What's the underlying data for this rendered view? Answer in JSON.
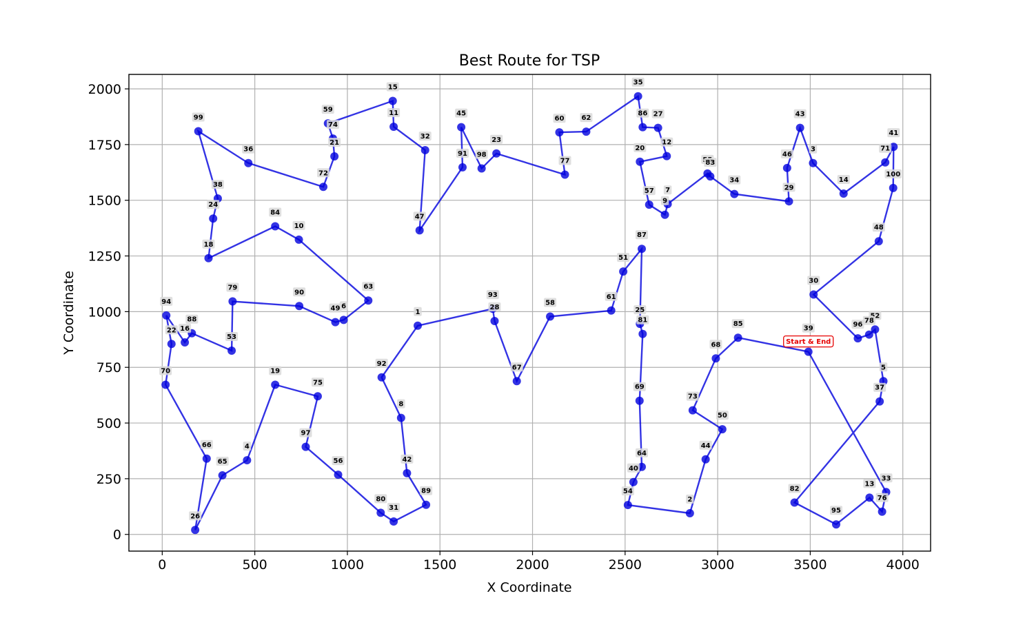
{
  "chart_data": {
    "type": "line",
    "title": "Best Route for TSP",
    "xlabel": "X Coordinate",
    "ylabel": "Y Coordinate",
    "xlim": [
      -180,
      4150
    ],
    "ylim": [
      -75,
      2065
    ],
    "x_ticks": [
      "0",
      "500",
      "1000",
      "1500",
      "2000",
      "2500",
      "3000",
      "3500",
      "4000"
    ],
    "x_tick_values": [
      0,
      500,
      1000,
      1500,
      2000,
      2500,
      3000,
      3500,
      4000
    ],
    "y_ticks": [
      "0",
      "250",
      "500",
      "750",
      "1000",
      "1250",
      "1500",
      "1750",
      "2000"
    ],
    "y_tick_values": [
      0,
      250,
      500,
      750,
      1000,
      1250,
      1500,
      1750,
      2000
    ],
    "grid": true,
    "route_color": "#0000dd",
    "start_marker_color": "#e60000",
    "start_label": "Start & End",
    "cities": [
      {
        "id": "1",
        "x": 1380,
        "y": 937
      },
      {
        "id": "2",
        "x": 2850,
        "y": 95
      },
      {
        "id": "3",
        "x": 3515,
        "y": 1667
      },
      {
        "id": "4",
        "x": 458,
        "y": 333
      },
      {
        "id": "5",
        "x": 3895,
        "y": 688
      },
      {
        "id": "6",
        "x": 980,
        "y": 963
      },
      {
        "id": "7",
        "x": 2730,
        "y": 1483
      },
      {
        "id": "8",
        "x": 1290,
        "y": 523
      },
      {
        "id": "9",
        "x": 2715,
        "y": 1435
      },
      {
        "id": "10",
        "x": 738,
        "y": 1323
      },
      {
        "id": "11",
        "x": 1250,
        "y": 1830
      },
      {
        "id": "12",
        "x": 2725,
        "y": 1698
      },
      {
        "id": "13",
        "x": 3820,
        "y": 165
      },
      {
        "id": "14",
        "x": 3680,
        "y": 1530
      },
      {
        "id": "15",
        "x": 1245,
        "y": 1946
      },
      {
        "id": "16",
        "x": 122,
        "y": 862
      },
      {
        "id": "18",
        "x": 250,
        "y": 1240
      },
      {
        "id": "19",
        "x": 610,
        "y": 672
      },
      {
        "id": "20",
        "x": 2580,
        "y": 1673
      },
      {
        "id": "21",
        "x": 930,
        "y": 1697
      },
      {
        "id": "22",
        "x": 50,
        "y": 855
      },
      {
        "id": "23",
        "x": 1805,
        "y": 1710
      },
      {
        "id": "24",
        "x": 275,
        "y": 1418
      },
      {
        "id": "25",
        "x": 2580,
        "y": 945
      },
      {
        "id": "26",
        "x": 178,
        "y": 20
      },
      {
        "id": "27",
        "x": 2678,
        "y": 1825
      },
      {
        "id": "28",
        "x": 1795,
        "y": 958
      },
      {
        "id": "29",
        "x": 3385,
        "y": 1495
      },
      {
        "id": "30",
        "x": 3518,
        "y": 1077
      },
      {
        "id": "31",
        "x": 1250,
        "y": 58
      },
      {
        "id": "32",
        "x": 1420,
        "y": 1725
      },
      {
        "id": "33",
        "x": 3910,
        "y": 190
      },
      {
        "id": "34",
        "x": 3090,
        "y": 1528
      },
      {
        "id": "35",
        "x": 2570,
        "y": 1967
      },
      {
        "id": "36",
        "x": 465,
        "y": 1667
      },
      {
        "id": "37",
        "x": 3875,
        "y": 597
      },
      {
        "id": "38",
        "x": 300,
        "y": 1508
      },
      {
        "id": "39",
        "x": 3490,
        "y": 820
      },
      {
        "id": "40",
        "x": 2545,
        "y": 235
      },
      {
        "id": "41",
        "x": 3950,
        "y": 1740
      },
      {
        "id": "42",
        "x": 1322,
        "y": 275
      },
      {
        "id": "43",
        "x": 3445,
        "y": 1825
      },
      {
        "id": "44",
        "x": 2935,
        "y": 337
      },
      {
        "id": "45",
        "x": 1615,
        "y": 1828
      },
      {
        "id": "46",
        "x": 3375,
        "y": 1645
      },
      {
        "id": "47",
        "x": 1390,
        "y": 1365
      },
      {
        "id": "48",
        "x": 3870,
        "y": 1316
      },
      {
        "id": "49",
        "x": 935,
        "y": 953
      },
      {
        "id": "50",
        "x": 3025,
        "y": 472
      },
      {
        "id": "51",
        "x": 2490,
        "y": 1180
      },
      {
        "id": "52",
        "x": 3850,
        "y": 920
      },
      {
        "id": "53",
        "x": 375,
        "y": 825
      },
      {
        "id": "54",
        "x": 2515,
        "y": 132
      },
      {
        "id": "55",
        "x": 2945,
        "y": 1620
      },
      {
        "id": "56",
        "x": 950,
        "y": 268
      },
      {
        "id": "57",
        "x": 2630,
        "y": 1480
      },
      {
        "id": "58",
        "x": 2095,
        "y": 978
      },
      {
        "id": "59",
        "x": 895,
        "y": 1845
      },
      {
        "id": "60",
        "x": 2145,
        "y": 1805
      },
      {
        "id": "61",
        "x": 2425,
        "y": 1005
      },
      {
        "id": "62",
        "x": 2290,
        "y": 1808
      },
      {
        "id": "63",
        "x": 1113,
        "y": 1050
      },
      {
        "id": "64",
        "x": 2590,
        "y": 303
      },
      {
        "id": "65",
        "x": 325,
        "y": 265
      },
      {
        "id": "66",
        "x": 240,
        "y": 340
      },
      {
        "id": "67",
        "x": 1915,
        "y": 688
      },
      {
        "id": "68",
        "x": 2990,
        "y": 790
      },
      {
        "id": "69",
        "x": 2578,
        "y": 600
      },
      {
        "id": "70",
        "x": 18,
        "y": 672
      },
      {
        "id": "71",
        "x": 3905,
        "y": 1670
      },
      {
        "id": "72",
        "x": 870,
        "y": 1560
      },
      {
        "id": "73",
        "x": 2865,
        "y": 557
      },
      {
        "id": "74",
        "x": 922,
        "y": 1777
      },
      {
        "id": "75",
        "x": 840,
        "y": 620
      },
      {
        "id": "76",
        "x": 3888,
        "y": 102
      },
      {
        "id": "77",
        "x": 2175,
        "y": 1615
      },
      {
        "id": "78",
        "x": 3818,
        "y": 897
      },
      {
        "id": "79",
        "x": 380,
        "y": 1046
      },
      {
        "id": "80",
        "x": 1180,
        "y": 97
      },
      {
        "id": "81",
        "x": 2595,
        "y": 900
      },
      {
        "id": "82",
        "x": 3415,
        "y": 143
      },
      {
        "id": "83",
        "x": 2960,
        "y": 1607
      },
      {
        "id": "84",
        "x": 610,
        "y": 1383
      },
      {
        "id": "85",
        "x": 3110,
        "y": 883
      },
      {
        "id": "86",
        "x": 2595,
        "y": 1828
      },
      {
        "id": "87",
        "x": 2590,
        "y": 1282
      },
      {
        "id": "88",
        "x": 160,
        "y": 903
      },
      {
        "id": "89",
        "x": 1425,
        "y": 133
      },
      {
        "id": "90",
        "x": 740,
        "y": 1025
      },
      {
        "id": "91",
        "x": 1622,
        "y": 1648
      },
      {
        "id": "92",
        "x": 1185,
        "y": 705
      },
      {
        "id": "93",
        "x": 1785,
        "y": 1013
      },
      {
        "id": "94",
        "x": 22,
        "y": 983
      },
      {
        "id": "95",
        "x": 3640,
        "y": 45
      },
      {
        "id": "96",
        "x": 3757,
        "y": 880
      },
      {
        "id": "97",
        "x": 775,
        "y": 393
      },
      {
        "id": "98",
        "x": 1725,
        "y": 1643
      },
      {
        "id": "99",
        "x": 195,
        "y": 1810
      },
      {
        "id": "100",
        "x": 3948,
        "y": 1555
      }
    ],
    "route": [
      "39",
      "85",
      "68",
      "73",
      "50",
      "44",
      "2",
      "54",
      "40",
      "64",
      "69",
      "81",
      "25",
      "87",
      "51",
      "61",
      "58",
      "67",
      "28",
      "93",
      "1",
      "92",
      "8",
      "42",
      "89",
      "31",
      "80",
      "56",
      "97",
      "75",
      "19",
      "4",
      "65",
      "26",
      "66",
      "70",
      "22",
      "94",
      "16",
      "88",
      "53",
      "79",
      "90",
      "49",
      "6",
      "63",
      "10",
      "84",
      "18",
      "24",
      "38",
      "99",
      "36",
      "72",
      "21",
      "74",
      "59",
      "15",
      "11",
      "32",
      "47",
      "91",
      "45",
      "98",
      "23",
      "77",
      "60",
      "62",
      "35",
      "86",
      "27",
      "12",
      "20",
      "57",
      "9",
      "7",
      "55",
      "83",
      "34",
      "29",
      "46",
      "43",
      "3",
      "14",
      "71",
      "41",
      "100",
      "48",
      "30",
      "96",
      "78",
      "52",
      "5",
      "37",
      "82",
      "95",
      "13",
      "76",
      "33",
      "39"
    ],
    "start_city": "39"
  }
}
